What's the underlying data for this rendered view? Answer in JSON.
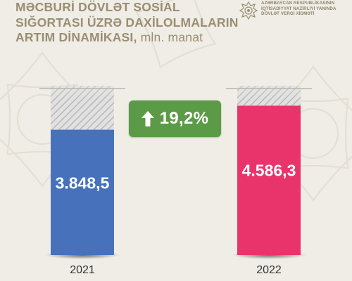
{
  "header": {
    "title_lines": [
      "MƏCBURİ DÖVLƏT SOSİAL",
      "SIĞORTASI ÜZRƏ DAXİLOLMALARIN",
      "ARTIM DİNAMİKASI,"
    ],
    "title_unit": "mln. manat",
    "agency_lines": [
      "AZƏRBAYCAN RESPUBLİKASININ",
      "İQTİSADİYYAT NAZİRLİYİ YANINDA",
      "DÖVLƏT VERGİ XİDMƏTİ"
    ],
    "emblem_icon": "state-tax-emblem-icon"
  },
  "growth": {
    "label": "19,2%",
    "icon": "arrow-up-icon",
    "color": "#5b9a46"
  },
  "chart_data": {
    "type": "bar",
    "categories": [
      "2021",
      "2022"
    ],
    "values": [
      3848.5,
      4586.3
    ],
    "value_labels": [
      "3.848,5",
      "4.586,3"
    ],
    "colors": [
      "#4772bb",
      "#e8336b"
    ],
    "ylim": [
      0,
      5200
    ],
    "grid": false,
    "axis_visible": false
  }
}
